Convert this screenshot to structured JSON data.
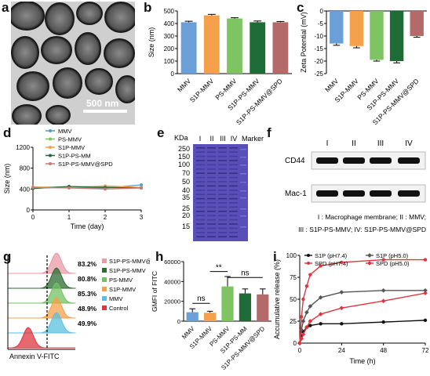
{
  "labels": {
    "a": "a",
    "b": "b",
    "c": "c",
    "d": "d",
    "e": "e",
    "f": "f",
    "g": "g",
    "h": "h",
    "i": "i"
  },
  "panel_a": {
    "scale_bar": "500 nm"
  },
  "panel_e": {
    "unit": "KDa",
    "ladder": [
      "250",
      "150",
      "100",
      "70",
      "50",
      "40",
      "35",
      "25",
      "20",
      "15"
    ],
    "lanes": [
      "I",
      "II",
      "III",
      "IV",
      "Marker"
    ]
  },
  "panel_f": {
    "lanes": [
      "I",
      "II",
      "III",
      "IV"
    ],
    "rows": [
      "CD44",
      "Mac-1"
    ],
    "caption1": "I : Macrophage membrane; II : MMV;",
    "caption2": "III : S1P-PS-MMV; IV: S1P-PS-MMV@SPD"
  },
  "panel_g": {
    "xlabel": "Annexin V-FITC",
    "rows": [
      {
        "name": "S1P-PS-MMV@SPD",
        "pct": "83.2%",
        "color": "#e89aa6"
      },
      {
        "name": "S1P-PS-MMV",
        "pct": "80.8%",
        "color": "#2e6b33"
      },
      {
        "name": "PS-MMV",
        "pct": "85.3%",
        "color": "#72c264"
      },
      {
        "name": "S1P-MMV",
        "pct": "48.9%",
        "color": "#f5a04a"
      },
      {
        "name": "MMV",
        "pct": "49.9%",
        "color": "#5bc0de"
      },
      {
        "name": "Control",
        "pct": "",
        "color": "#e0353f"
      }
    ]
  },
  "chart_data": [
    {
      "panel": "b",
      "type": "bar",
      "categories": [
        "MMV",
        "S1P-MMV",
        "PS-MMV",
        "S1P-PS-MMV",
        "S1P-PS-MMV@SPD"
      ],
      "values": [
        410,
        465,
        440,
        410,
        410
      ],
      "errors": [
        8,
        8,
        6,
        10,
        6
      ],
      "colors": [
        "#6a9fd8",
        "#f5a04a",
        "#7fc463",
        "#1f6b35",
        "#b56a6a"
      ],
      "ylabel": "Size (nm)",
      "ylim": [
        0,
        500
      ],
      "yticks": [
        0,
        100,
        200,
        300,
        400,
        500
      ]
    },
    {
      "panel": "c",
      "type": "bar",
      "categories": [
        "MMV",
        "S1P-MMV",
        "PS-MMV",
        "S1P-PS-MMV",
        "S1P-PS-MMV@SPD"
      ],
      "values": [
        -13,
        -14,
        -19.5,
        -20,
        -10
      ],
      "errors": [
        0.7,
        0.7,
        0.5,
        0.7,
        0.5
      ],
      "colors": [
        "#6a9fd8",
        "#f5a04a",
        "#7fc463",
        "#1f6b35",
        "#b56a6a"
      ],
      "ylabel": "Zeta Potential (mV)",
      "ylim": [
        -25,
        0
      ],
      "yticks": [
        0,
        -5,
        -10,
        -15,
        -20,
        -25
      ]
    },
    {
      "panel": "d",
      "type": "line",
      "x": [
        0,
        1,
        2,
        3
      ],
      "xlabel": "Time (day)",
      "ylabel": "Size (nm)",
      "ylim": [
        0,
        1200
      ],
      "xlim": [
        0,
        3
      ],
      "yticks": [
        0,
        400,
        800,
        1200
      ],
      "xticks": [
        0,
        1,
        2,
        3
      ],
      "series": [
        {
          "name": "MMV",
          "values": [
            420,
            430,
            420,
            480
          ],
          "color": "#4a9fd8"
        },
        {
          "name": "PS-MMV",
          "values": [
            430,
            440,
            450,
            420
          ],
          "color": "#7fc463"
        },
        {
          "name": "S1P-MMV",
          "values": [
            440,
            430,
            460,
            430
          ],
          "color": "#f5a04a"
        },
        {
          "name": "S1P-PS-MM",
          "values": [
            410,
            450,
            430,
            420
          ],
          "color": "#1f6b35"
        },
        {
          "name": "S1P-PS-MMV@SPD",
          "values": [
            430,
            420,
            400,
            420
          ],
          "color": "#c97a7a"
        }
      ]
    },
    {
      "panel": "h",
      "type": "bar",
      "categories": [
        "MMV",
        "S1P-MMV",
        "PS-MMV",
        "S1P-PS-MM",
        "S1P-PS-MMV@SPD"
      ],
      "values": [
        9000,
        8500,
        35000,
        28000,
        27000
      ],
      "errors": [
        3500,
        1500,
        10000,
        4500,
        5500
      ],
      "colors": [
        "#6a9fd8",
        "#f5a04a",
        "#7fc463",
        "#1f6b35",
        "#b56a6a"
      ],
      "ylabel": "GMFI of FITC",
      "ylim": [
        0,
        60000
      ],
      "yticks": [
        0,
        20000,
        40000,
        60000
      ],
      "annotations": [
        {
          "text": "ns",
          "between": [
            0,
            1
          ]
        },
        {
          "text": "**",
          "between": [
            1,
            2
          ]
        },
        {
          "text": "ns",
          "between": [
            2,
            4
          ]
        }
      ]
    },
    {
      "panel": "i",
      "type": "line",
      "xlabel": "Time (h)",
      "ylabel": "Accumulative release (%)",
      "xlim": [
        0,
        72
      ],
      "ylim": [
        0,
        100
      ],
      "xticks": [
        0,
        24,
        48,
        72
      ],
      "yticks": [
        0,
        25,
        50,
        75,
        100
      ],
      "series": [
        {
          "name": "S1P (pH7.4)",
          "x": [
            0,
            1,
            2,
            4,
            6,
            12,
            24,
            48,
            72
          ],
          "values": [
            0,
            8,
            13,
            18,
            20,
            22,
            22,
            24,
            26
          ],
          "color": "#111111",
          "marker": "circle"
        },
        {
          "name": "S1P (pH5.0)",
          "x": [
            0,
            1,
            2,
            4,
            6,
            12,
            24,
            48,
            72
          ],
          "values": [
            0,
            15,
            25,
            35,
            42,
            52,
            58,
            60,
            60
          ],
          "color": "#555555",
          "marker": "diamond"
        },
        {
          "name": "SPD (pH7.4)",
          "x": [
            0,
            1,
            2,
            4,
            6,
            12,
            24,
            48,
            72
          ],
          "values": [
            0,
            30,
            50,
            65,
            78,
            88,
            92,
            95,
            95
          ],
          "color": "#e0353f",
          "marker": "circle"
        },
        {
          "name": "SPD (pH5.0)",
          "x": [
            0,
            1,
            2,
            4,
            6,
            12,
            24,
            48,
            72
          ],
          "values": [
            0,
            5,
            10,
            18,
            25,
            33,
            40,
            48,
            57
          ],
          "color": "#e0353f",
          "marker": "diamond"
        }
      ]
    }
  ]
}
